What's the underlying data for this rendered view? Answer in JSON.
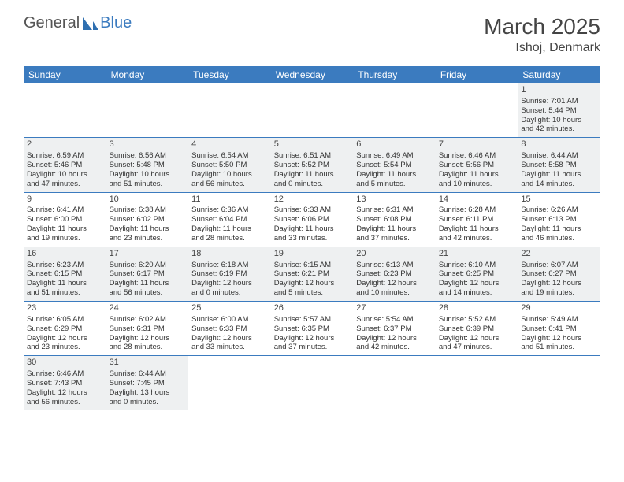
{
  "brand": {
    "part1": "General",
    "part2": "Blue"
  },
  "title": "March 2025",
  "location": "Ishoj, Denmark",
  "colors": {
    "header_bg": "#3b7bbf",
    "header_text": "#ffffff",
    "shade_bg": "#eef0f1",
    "border": "#3b7bbf",
    "text": "#333333"
  },
  "day_headers": [
    "Sunday",
    "Monday",
    "Tuesday",
    "Wednesday",
    "Thursday",
    "Friday",
    "Saturday"
  ],
  "weeks": [
    [
      {
        "empty": true
      },
      {
        "empty": true
      },
      {
        "empty": true
      },
      {
        "empty": true
      },
      {
        "empty": true
      },
      {
        "empty": true
      },
      {
        "n": "1",
        "sr": "Sunrise: 7:01 AM",
        "ss": "Sunset: 5:44 PM",
        "dl1": "Daylight: 10 hours",
        "dl2": "and 42 minutes.",
        "shade": true
      }
    ],
    [
      {
        "n": "2",
        "sr": "Sunrise: 6:59 AM",
        "ss": "Sunset: 5:46 PM",
        "dl1": "Daylight: 10 hours",
        "dl2": "and 47 minutes.",
        "shade": true
      },
      {
        "n": "3",
        "sr": "Sunrise: 6:56 AM",
        "ss": "Sunset: 5:48 PM",
        "dl1": "Daylight: 10 hours",
        "dl2": "and 51 minutes.",
        "shade": true
      },
      {
        "n": "4",
        "sr": "Sunrise: 6:54 AM",
        "ss": "Sunset: 5:50 PM",
        "dl1": "Daylight: 10 hours",
        "dl2": "and 56 minutes.",
        "shade": true
      },
      {
        "n": "5",
        "sr": "Sunrise: 6:51 AM",
        "ss": "Sunset: 5:52 PM",
        "dl1": "Daylight: 11 hours",
        "dl2": "and 0 minutes.",
        "shade": true
      },
      {
        "n": "6",
        "sr": "Sunrise: 6:49 AM",
        "ss": "Sunset: 5:54 PM",
        "dl1": "Daylight: 11 hours",
        "dl2": "and 5 minutes.",
        "shade": true
      },
      {
        "n": "7",
        "sr": "Sunrise: 6:46 AM",
        "ss": "Sunset: 5:56 PM",
        "dl1": "Daylight: 11 hours",
        "dl2": "and 10 minutes.",
        "shade": true
      },
      {
        "n": "8",
        "sr": "Sunrise: 6:44 AM",
        "ss": "Sunset: 5:58 PM",
        "dl1": "Daylight: 11 hours",
        "dl2": "and 14 minutes.",
        "shade": true
      }
    ],
    [
      {
        "n": "9",
        "sr": "Sunrise: 6:41 AM",
        "ss": "Sunset: 6:00 PM",
        "dl1": "Daylight: 11 hours",
        "dl2": "and 19 minutes."
      },
      {
        "n": "10",
        "sr": "Sunrise: 6:38 AM",
        "ss": "Sunset: 6:02 PM",
        "dl1": "Daylight: 11 hours",
        "dl2": "and 23 minutes."
      },
      {
        "n": "11",
        "sr": "Sunrise: 6:36 AM",
        "ss": "Sunset: 6:04 PM",
        "dl1": "Daylight: 11 hours",
        "dl2": "and 28 minutes."
      },
      {
        "n": "12",
        "sr": "Sunrise: 6:33 AM",
        "ss": "Sunset: 6:06 PM",
        "dl1": "Daylight: 11 hours",
        "dl2": "and 33 minutes."
      },
      {
        "n": "13",
        "sr": "Sunrise: 6:31 AM",
        "ss": "Sunset: 6:08 PM",
        "dl1": "Daylight: 11 hours",
        "dl2": "and 37 minutes."
      },
      {
        "n": "14",
        "sr": "Sunrise: 6:28 AM",
        "ss": "Sunset: 6:11 PM",
        "dl1": "Daylight: 11 hours",
        "dl2": "and 42 minutes."
      },
      {
        "n": "15",
        "sr": "Sunrise: 6:26 AM",
        "ss": "Sunset: 6:13 PM",
        "dl1": "Daylight: 11 hours",
        "dl2": "and 46 minutes."
      }
    ],
    [
      {
        "n": "16",
        "sr": "Sunrise: 6:23 AM",
        "ss": "Sunset: 6:15 PM",
        "dl1": "Daylight: 11 hours",
        "dl2": "and 51 minutes.",
        "shade": true
      },
      {
        "n": "17",
        "sr": "Sunrise: 6:20 AM",
        "ss": "Sunset: 6:17 PM",
        "dl1": "Daylight: 11 hours",
        "dl2": "and 56 minutes.",
        "shade": true
      },
      {
        "n": "18",
        "sr": "Sunrise: 6:18 AM",
        "ss": "Sunset: 6:19 PM",
        "dl1": "Daylight: 12 hours",
        "dl2": "and 0 minutes.",
        "shade": true
      },
      {
        "n": "19",
        "sr": "Sunrise: 6:15 AM",
        "ss": "Sunset: 6:21 PM",
        "dl1": "Daylight: 12 hours",
        "dl2": "and 5 minutes.",
        "shade": true
      },
      {
        "n": "20",
        "sr": "Sunrise: 6:13 AM",
        "ss": "Sunset: 6:23 PM",
        "dl1": "Daylight: 12 hours",
        "dl2": "and 10 minutes.",
        "shade": true
      },
      {
        "n": "21",
        "sr": "Sunrise: 6:10 AM",
        "ss": "Sunset: 6:25 PM",
        "dl1": "Daylight: 12 hours",
        "dl2": "and 14 minutes.",
        "shade": true
      },
      {
        "n": "22",
        "sr": "Sunrise: 6:07 AM",
        "ss": "Sunset: 6:27 PM",
        "dl1": "Daylight: 12 hours",
        "dl2": "and 19 minutes.",
        "shade": true
      }
    ],
    [
      {
        "n": "23",
        "sr": "Sunrise: 6:05 AM",
        "ss": "Sunset: 6:29 PM",
        "dl1": "Daylight: 12 hours",
        "dl2": "and 23 minutes."
      },
      {
        "n": "24",
        "sr": "Sunrise: 6:02 AM",
        "ss": "Sunset: 6:31 PM",
        "dl1": "Daylight: 12 hours",
        "dl2": "and 28 minutes."
      },
      {
        "n": "25",
        "sr": "Sunrise: 6:00 AM",
        "ss": "Sunset: 6:33 PM",
        "dl1": "Daylight: 12 hours",
        "dl2": "and 33 minutes."
      },
      {
        "n": "26",
        "sr": "Sunrise: 5:57 AM",
        "ss": "Sunset: 6:35 PM",
        "dl1": "Daylight: 12 hours",
        "dl2": "and 37 minutes."
      },
      {
        "n": "27",
        "sr": "Sunrise: 5:54 AM",
        "ss": "Sunset: 6:37 PM",
        "dl1": "Daylight: 12 hours",
        "dl2": "and 42 minutes."
      },
      {
        "n": "28",
        "sr": "Sunrise: 5:52 AM",
        "ss": "Sunset: 6:39 PM",
        "dl1": "Daylight: 12 hours",
        "dl2": "and 47 minutes."
      },
      {
        "n": "29",
        "sr": "Sunrise: 5:49 AM",
        "ss": "Sunset: 6:41 PM",
        "dl1": "Daylight: 12 hours",
        "dl2": "and 51 minutes."
      }
    ],
    [
      {
        "n": "30",
        "sr": "Sunrise: 6:46 AM",
        "ss": "Sunset: 7:43 PM",
        "dl1": "Daylight: 12 hours",
        "dl2": "and 56 minutes.",
        "shade": true
      },
      {
        "n": "31",
        "sr": "Sunrise: 6:44 AM",
        "ss": "Sunset: 7:45 PM",
        "dl1": "Daylight: 13 hours",
        "dl2": "and 0 minutes.",
        "shade": true
      },
      {
        "empty": true
      },
      {
        "empty": true
      },
      {
        "empty": true
      },
      {
        "empty": true
      },
      {
        "empty": true
      }
    ]
  ]
}
